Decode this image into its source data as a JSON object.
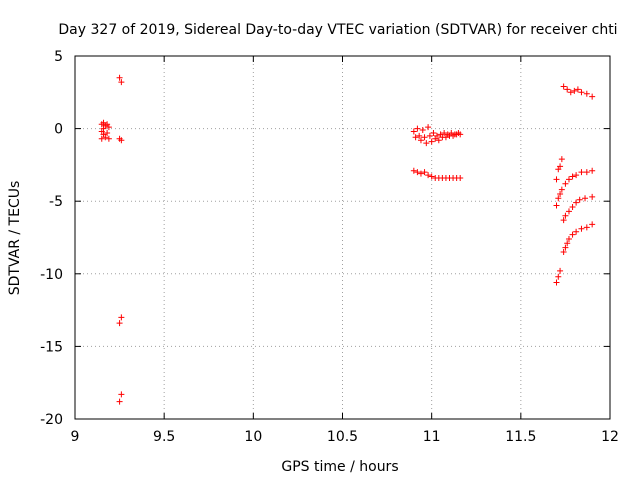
{
  "chart_data": {
    "type": "scatter",
    "title": "Day 327 of 2019, Sidereal Day-to-day VTEC variation (SDTVAR) for receiver chti",
    "xlabel": "GPS time / hours",
    "ylabel": "SDTVAR / TECUs",
    "xlim": [
      9,
      12
    ],
    "ylim": [
      -20,
      5
    ],
    "xticks": [
      "9",
      "9.5",
      "10",
      "10.5",
      "11",
      "11.5",
      "12"
    ],
    "yticks": [
      "5",
      "0",
      "-5",
      "-10",
      "-15",
      "-20"
    ],
    "grid": true,
    "marker": "+",
    "color": "#ff0000",
    "series": [
      {
        "points": [
          [
            9.15,
            0.3
          ],
          [
            9.15,
            -0.2
          ],
          [
            9.15,
            -0.7
          ],
          [
            9.16,
            0.4
          ],
          [
            9.16,
            0.0
          ],
          [
            9.16,
            -0.4
          ],
          [
            9.17,
            0.2
          ],
          [
            9.17,
            -0.6
          ],
          [
            9.18,
            0.3
          ],
          [
            9.18,
            -0.3
          ],
          [
            9.19,
            0.1
          ],
          [
            9.19,
            -0.7
          ],
          [
            9.25,
            3.5
          ],
          [
            9.26,
            3.2
          ],
          [
            9.25,
            -0.7
          ],
          [
            9.26,
            -0.8
          ],
          [
            9.26,
            -13.0
          ],
          [
            9.25,
            -13.4
          ],
          [
            9.26,
            -18.3
          ],
          [
            9.25,
            -18.8
          ],
          [
            10.9,
            -0.2
          ],
          [
            10.91,
            -0.6
          ],
          [
            10.92,
            0.0
          ],
          [
            10.93,
            -0.5
          ],
          [
            10.94,
            -0.8
          ],
          [
            10.95,
            -0.1
          ],
          [
            10.96,
            -0.6
          ],
          [
            10.97,
            -1.0
          ],
          [
            10.98,
            0.1
          ],
          [
            10.99,
            -0.5
          ],
          [
            11.0,
            -0.9
          ],
          [
            11.01,
            -0.3
          ],
          [
            11.02,
            -0.7
          ],
          [
            11.03,
            -0.5
          ],
          [
            11.04,
            -0.8
          ],
          [
            11.05,
            -0.4
          ],
          [
            11.06,
            -0.6
          ],
          [
            11.07,
            -0.3
          ],
          [
            11.08,
            -0.6
          ],
          [
            11.09,
            -0.4
          ],
          [
            11.1,
            -0.5
          ],
          [
            11.11,
            -0.3
          ],
          [
            11.12,
            -0.5
          ],
          [
            11.13,
            -0.4
          ],
          [
            11.14,
            -0.4
          ],
          [
            11.15,
            -0.3
          ],
          [
            11.16,
            -0.4
          ],
          [
            10.9,
            -2.9
          ],
          [
            10.92,
            -3.0
          ],
          [
            10.94,
            -3.1
          ],
          [
            10.96,
            -3.0
          ],
          [
            10.98,
            -3.2
          ],
          [
            11.0,
            -3.3
          ],
          [
            11.02,
            -3.4
          ],
          [
            11.04,
            -3.4
          ],
          [
            11.06,
            -3.4
          ],
          [
            11.08,
            -3.4
          ],
          [
            11.1,
            -3.4
          ],
          [
            11.12,
            -3.4
          ],
          [
            11.14,
            -3.4
          ],
          [
            11.16,
            -3.4
          ],
          [
            11.74,
            2.9
          ],
          [
            11.76,
            2.7
          ],
          [
            11.78,
            2.5
          ],
          [
            11.8,
            2.6
          ],
          [
            11.82,
            2.7
          ],
          [
            11.84,
            2.5
          ],
          [
            11.87,
            2.4
          ],
          [
            11.9,
            2.2
          ],
          [
            11.7,
            -3.5
          ],
          [
            11.71,
            -2.8
          ],
          [
            11.72,
            -2.6
          ],
          [
            11.73,
            -2.1
          ],
          [
            11.7,
            -5.3
          ],
          [
            11.71,
            -4.8
          ],
          [
            11.72,
            -4.5
          ],
          [
            11.73,
            -4.2
          ],
          [
            11.75,
            -3.8
          ],
          [
            11.77,
            -3.5
          ],
          [
            11.79,
            -3.3
          ],
          [
            11.81,
            -3.2
          ],
          [
            11.84,
            -3.0
          ],
          [
            11.87,
            -3.0
          ],
          [
            11.9,
            -2.9
          ],
          [
            11.74,
            -6.3
          ],
          [
            11.75,
            -6.0
          ],
          [
            11.77,
            -5.7
          ],
          [
            11.79,
            -5.4
          ],
          [
            11.81,
            -5.1
          ],
          [
            11.83,
            -4.9
          ],
          [
            11.86,
            -4.8
          ],
          [
            11.9,
            -4.7
          ],
          [
            11.74,
            -8.5
          ],
          [
            11.75,
            -8.2
          ],
          [
            11.76,
            -7.9
          ],
          [
            11.77,
            -7.6
          ],
          [
            11.79,
            -7.3
          ],
          [
            11.81,
            -7.1
          ],
          [
            11.84,
            -6.9
          ],
          [
            11.87,
            -6.8
          ],
          [
            11.9,
            -6.6
          ],
          [
            11.7,
            -10.6
          ],
          [
            11.71,
            -10.2
          ],
          [
            11.72,
            -9.8
          ]
        ]
      }
    ]
  }
}
